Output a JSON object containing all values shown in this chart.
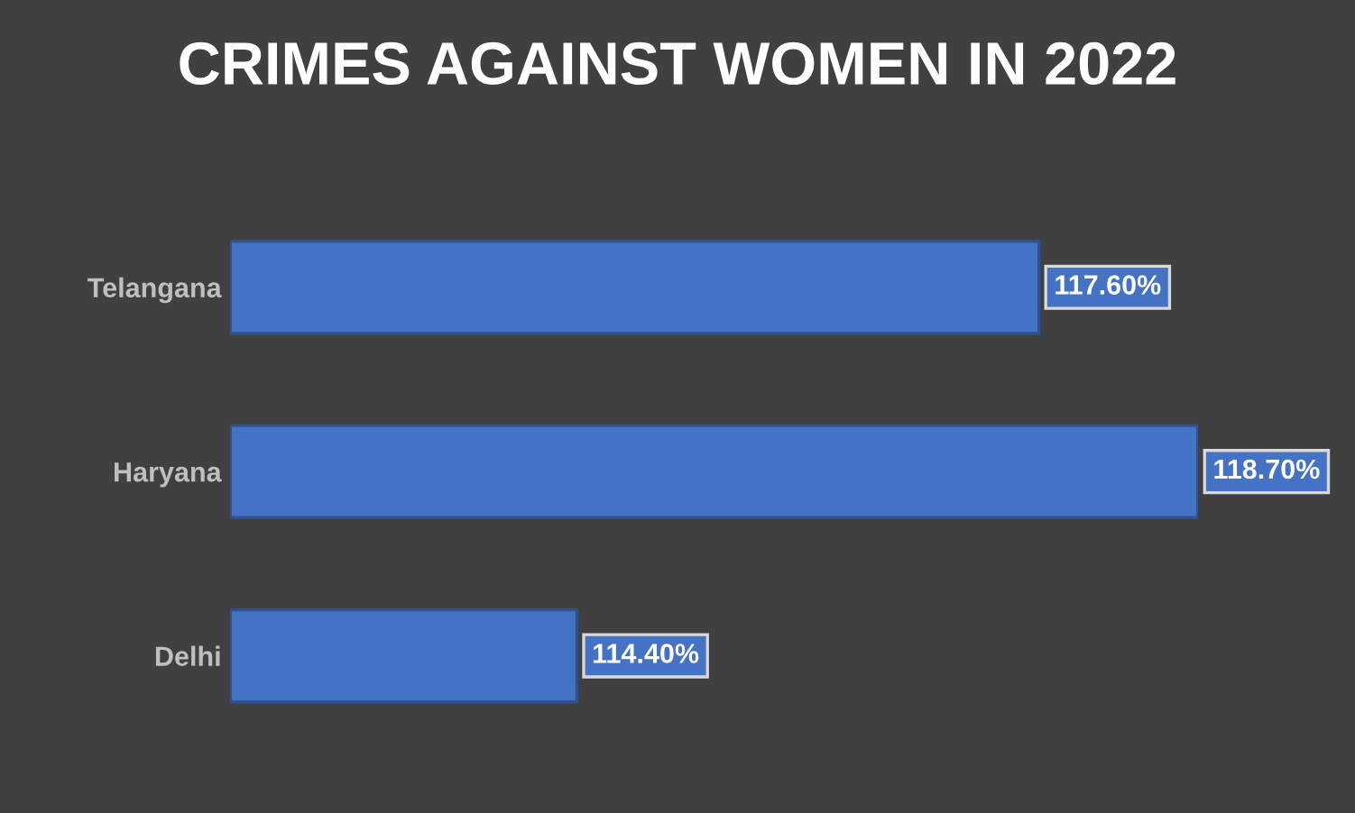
{
  "chart_data": {
    "type": "bar",
    "orientation": "horizontal",
    "title": "CRIMES AGAINST WOMEN IN 2022",
    "categories": [
      "Telangana",
      "Haryana",
      "Delhi"
    ],
    "values": [
      117.6,
      118.7,
      114.4
    ],
    "value_labels": [
      "117.60%",
      "118.70%",
      "114.40%"
    ],
    "color": "#4472c4",
    "xlim": [
      112,
      118.7
    ],
    "tick_labels": "y",
    "grid": false
  }
}
